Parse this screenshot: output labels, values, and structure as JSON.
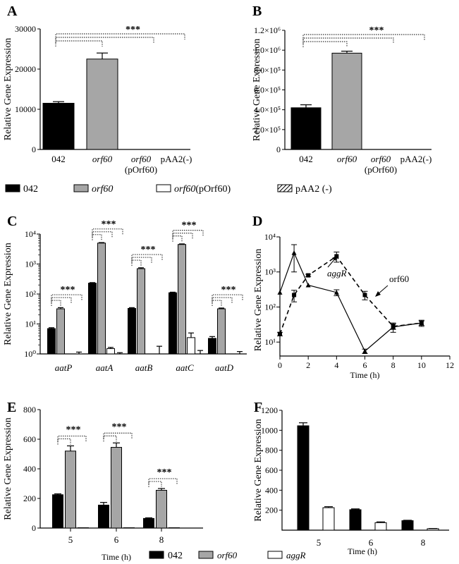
{
  "legend": [
    {
      "label": "042",
      "fill": "solid"
    },
    {
      "label": "orf60",
      "fill": "grey",
      "italic": true
    },
    {
      "label": "orf60(pOrf60)",
      "fill": "white",
      "italic_prefix": "orf60",
      "suffix": "(pOrf60)"
    },
    {
      "label": "pAA2 (-)",
      "fill": "hatch"
    }
  ],
  "colors": {
    "solid": "#000000",
    "grey": "#a6a6a6",
    "white": "#ffffff"
  },
  "chart_data": [
    {
      "panel": "A",
      "type": "bar",
      "ylabel": "Relative Gene Expression",
      "ylim": [
        0,
        30000
      ],
      "yticks": [
        0,
        10000,
        20000,
        30000
      ],
      "categories": [
        "042",
        "orf60",
        "orf60 (pOrf60)",
        "pAA2(-)"
      ],
      "values": [
        11500,
        22500,
        0,
        0
      ],
      "errors": [
        400,
        1500,
        0,
        0
      ],
      "significance": "***"
    },
    {
      "panel": "B",
      "type": "bar",
      "ylabel": "Relative Gene Expression",
      "ylim": [
        0,
        1200000
      ],
      "ytick_labels": [
        "0",
        "2.0×10⁵",
        "4.0×10⁵",
        "6.0×10⁵",
        "8.0×10⁵",
        "1.0×10⁶",
        "1.2×10⁶"
      ],
      "yticks": [
        0,
        200000,
        400000,
        600000,
        800000,
        1000000,
        1200000
      ],
      "categories": [
        "042",
        "orf60",
        "orf60 (pOrf60)",
        "pAA2(-)"
      ],
      "values": [
        420000,
        970000,
        0,
        0
      ],
      "errors": [
        30000,
        20000,
        0,
        0
      ],
      "significance": "***"
    },
    {
      "panel": "C",
      "type": "bar",
      "yscale": "log",
      "ylabel": "Relative Gene Expression",
      "ylim": [
        1,
        10000
      ],
      "ytick_labels": [
        "10⁰",
        "10¹",
        "10²",
        "10³",
        "10⁴"
      ],
      "categories": [
        "aatP",
        "aatA",
        "aatB",
        "aatC",
        "aatD"
      ],
      "series": [
        {
          "name": "042",
          "values": [
            7,
            230,
            33,
            110,
            3.3
          ],
          "errors": [
            0.5,
            10,
            2,
            5,
            0.5
          ]
        },
        {
          "name": "orf60",
          "values": [
            32,
            5000,
            700,
            4500,
            32
          ],
          "errors": [
            3,
            200,
            50,
            200,
            2
          ]
        },
        {
          "name": "orf60(pOrf60)",
          "values": [
            1,
            1.5,
            1,
            3.5,
            1
          ],
          "errors": [
            0,
            0.15,
            0,
            1.5,
            0
          ]
        },
        {
          "name": "pAA2 (-)",
          "values": [
            1,
            1,
            1,
            1,
            1
          ],
          "errors": [
            0.15,
            0.1,
            0.8,
            0.3,
            0.2
          ]
        }
      ],
      "significance": "***"
    },
    {
      "panel": "D",
      "type": "line",
      "yscale": "log",
      "ylabel": "Relative Gene Expression",
      "xlabel": "Time (h)",
      "xlim": [
        0,
        12
      ],
      "xticks": [
        0,
        2,
        4,
        6,
        8,
        10,
        12
      ],
      "ylim": [
        4,
        10000
      ],
      "ytick_labels": [
        "10¹",
        "10²",
        "10³",
        "10⁴"
      ],
      "series": [
        {
          "name": "aggR",
          "style": "solid",
          "x": [
            0,
            1,
            2,
            4,
            6,
            8,
            10
          ],
          "y": [
            260,
            3500,
            420,
            260,
            5.5,
            27,
            35
          ],
          "errors": [
            0,
            2500,
            0,
            50,
            0.8,
            8,
            5
          ]
        },
        {
          "name": "orf60",
          "style": "dashed",
          "x": [
            0,
            1,
            2,
            4,
            6,
            8,
            10
          ],
          "y": [
            17,
            220,
            800,
            2800,
            220,
            28,
            35
          ],
          "errors": [
            2,
            80,
            60,
            900,
            60,
            5,
            7
          ]
        }
      ]
    },
    {
      "panel": "E",
      "type": "bar",
      "ylabel": "Relative Gene Expression",
      "xlabel": "Time (h)",
      "ylim": [
        0,
        800
      ],
      "yticks": [
        0,
        200,
        400,
        600,
        800
      ],
      "categories": [
        "5",
        "6",
        "8"
      ],
      "series": [
        {
          "name": "042",
          "values": [
            225,
            155,
            65
          ],
          "errors": [
            6,
            18,
            4
          ]
        },
        {
          "name": "orf60",
          "values": [
            520,
            545,
            255
          ],
          "errors": [
            35,
            30,
            12
          ]
        },
        {
          "name": "aggR",
          "values": [
            2,
            2,
            2
          ],
          "errors": [
            0,
            0,
            0
          ]
        }
      ],
      "significance": "***",
      "legend": [
        "042",
        "orf60",
        "aggR"
      ]
    },
    {
      "panel": "F",
      "type": "bar",
      "ylabel": "Relative Gene Expression",
      "xlabel": "Time (h)",
      "ylim": [
        0,
        1200
      ],
      "yticks": [
        200,
        400,
        600,
        800,
        1000,
        1200
      ],
      "categories": [
        "5",
        "6",
        "8"
      ],
      "series": [
        {
          "name": "042",
          "values": [
            1045,
            205,
            95
          ],
          "errors": [
            30,
            8,
            4
          ]
        },
        {
          "name": "aggR",
          "values": [
            225,
            75,
            15
          ],
          "errors": [
            10,
            8,
            2
          ]
        }
      ]
    }
  ]
}
